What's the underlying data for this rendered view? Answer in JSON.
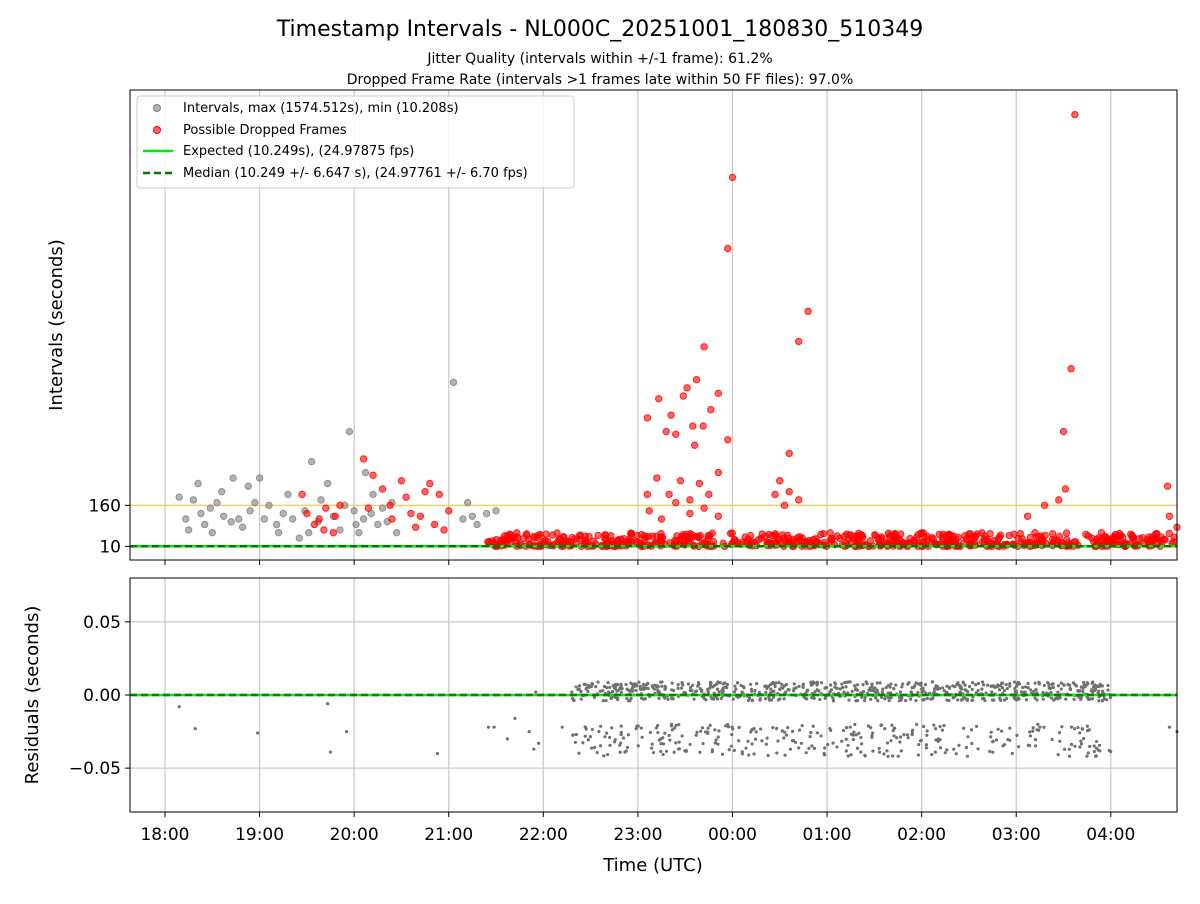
{
  "figure": {
    "title": "Timestamp Intervals - NL000C_20251001_180830_510349",
    "subtitle_1": "Jitter Quality (intervals within +/-1 frame): 61.2%",
    "subtitle_2": "Dropped Frame Rate (intervals >1 frames late within 50 FF files): 97.0%"
  },
  "colors": {
    "intervals": "#808080",
    "dropped": "#ff0000",
    "expected": "#00ee00",
    "median": "#007700",
    "threshold": "#f0d070",
    "grid": "#c8c8c8"
  },
  "chart_data": [
    {
      "type": "scatter",
      "name": "intervals-panel",
      "xlabel": "Time (UTC)",
      "ylabel": "Intervals (seconds)",
      "xlim": [
        -0.37,
        10.7
      ],
      "xlim_note": "hours after 18:00 UTC",
      "ylim": [
        -40,
        1680
      ],
      "yticks": [
        10,
        160
      ],
      "ytick_labels": [
        "10",
        "160"
      ],
      "threshold_line": 160,
      "expected_interval": 10.249,
      "median_interval": 10.249,
      "legend": {
        "placement": "top-left",
        "entries": [
          "Intervals, max (1574.512s), min (10.208s)",
          "Possible Dropped Frames",
          "Expected (10.249s), (24.97875 fps)",
          "Median (10.249 +/- 6.647 s), (24.97761 +/- 6.70 fps)"
        ]
      },
      "series": [
        {
          "name": "Intervals",
          "points": [
            [
              0.15,
              190
            ],
            [
              0.22,
              110
            ],
            [
              0.25,
              70
            ],
            [
              0.3,
              180
            ],
            [
              0.35,
              240
            ],
            [
              0.38,
              130
            ],
            [
              0.42,
              90
            ],
            [
              0.48,
              150
            ],
            [
              0.5,
              60
            ],
            [
              0.55,
              170
            ],
            [
              0.6,
              210
            ],
            [
              0.62,
              120
            ],
            [
              0.7,
              100
            ],
            [
              0.72,
              260
            ],
            [
              0.78,
              110
            ],
            [
              0.82,
              80
            ],
            [
              0.88,
              230
            ],
            [
              0.9,
              140
            ],
            [
              0.95,
              170
            ],
            [
              1.0,
              260
            ],
            [
              1.05,
              110
            ],
            [
              1.1,
              160
            ],
            [
              1.18,
              90
            ],
            [
              1.2,
              60
            ],
            [
              1.25,
              130
            ],
            [
              1.3,
              200
            ],
            [
              1.35,
              110
            ],
            [
              1.42,
              40
            ],
            [
              1.48,
              140
            ],
            [
              1.52,
              60
            ],
            [
              1.55,
              320
            ],
            [
              1.62,
              100
            ],
            [
              1.65,
              180
            ],
            [
              1.72,
              240
            ],
            [
              1.78,
              120
            ],
            [
              1.85,
              70
            ],
            [
              1.9,
              160
            ],
            [
              1.95,
              430
            ],
            [
              2.0,
              140
            ],
            [
              2.02,
              90
            ],
            [
              2.05,
              60
            ],
            [
              2.1,
              110
            ],
            [
              2.12,
              280
            ],
            [
              2.18,
              130
            ],
            [
              2.2,
              200
            ],
            [
              2.25,
              90
            ],
            [
              2.3,
              150
            ],
            [
              2.35,
              100
            ],
            [
              2.4,
              170
            ],
            [
              2.45,
              60
            ],
            [
              3.05,
              610
            ],
            [
              3.15,
              110
            ],
            [
              3.2,
              170
            ],
            [
              3.25,
              120
            ],
            [
              3.3,
              90
            ],
            [
              3.4,
              130
            ],
            [
              3.5,
              140
            ]
          ]
        },
        {
          "name": "Possible Dropped Frames",
          "points": [
            [
              5.95,
              1100
            ],
            [
              6.0,
              1360
            ],
            [
              6.8,
              870
            ],
            [
              6.7,
              760
            ],
            [
              5.7,
              740
            ],
            [
              6.6,
              350
            ],
            [
              5.48,
              560
            ],
            [
              5.58,
              450
            ],
            [
              5.69,
              450
            ],
            [
              5.77,
              510
            ],
            [
              5.52,
              590
            ],
            [
              5.62,
              620
            ],
            [
              5.4,
              420
            ],
            [
              5.85,
              570
            ],
            [
              5.22,
              550
            ],
            [
              5.3,
              430
            ],
            [
              5.35,
              490
            ],
            [
              5.6,
              380
            ],
            [
              5.1,
              480
            ],
            [
              5.95,
              400
            ],
            [
              5.1,
              200
            ],
            [
              5.2,
              260
            ],
            [
              5.33,
              200
            ],
            [
              5.45,
              250
            ],
            [
              5.55,
              180
            ],
            [
              5.65,
              240
            ],
            [
              5.75,
              200
            ],
            [
              5.85,
              280
            ],
            [
              5.12,
              140
            ],
            [
              5.25,
              110
            ],
            [
              5.4,
              170
            ],
            [
              5.55,
              130
            ],
            [
              5.7,
              150
            ],
            [
              5.85,
              120
            ],
            [
              6.45,
              200
            ],
            [
              6.5,
              250
            ],
            [
              6.55,
              160
            ],
            [
              6.6,
              210
            ],
            [
              6.7,
              180
            ],
            [
              9.5,
              430
            ],
            [
              9.58,
              660
            ],
            [
              9.62,
              1590
            ],
            [
              9.52,
              220
            ],
            [
              9.45,
              180
            ],
            [
              9.3,
              160
            ],
            [
              9.12,
              120
            ],
            [
              10.6,
              230
            ],
            [
              10.62,
              120
            ],
            [
              10.7,
              80
            ]
          ],
          "dense_band": {
            "x_range": [
              3.4,
              10.7
            ],
            "y_range": [
              10,
              60
            ],
            "note": "several hundred dropped-frame points clustered just above the expected line"
          }
        }
      ]
    },
    {
      "type": "scatter",
      "name": "residuals-panel",
      "xlabel": "Time (UTC)",
      "ylabel": "Residuals (seconds)",
      "xlim": [
        -0.37,
        10.7
      ],
      "ylim": [
        -0.08,
        0.08
      ],
      "yticks": [
        0.05,
        0.0,
        -0.05
      ],
      "ytick_labels": [
        "0.05",
        "0.00",
        "−0.05"
      ],
      "xticks": [
        0,
        1,
        2,
        3,
        4,
        5,
        6,
        7,
        8,
        9,
        10
      ],
      "xtick_labels": [
        "18:00",
        "19:00",
        "20:00",
        "21:00",
        "22:00",
        "23:00",
        "00:00",
        "01:00",
        "02:00",
        "03:00",
        "04:00"
      ],
      "series": [
        {
          "name": "Residuals",
          "points": [
            [
              0.15,
              -0.008
            ],
            [
              0.32,
              -0.023
            ],
            [
              0.98,
              -0.026
            ],
            [
              1.72,
              -0.006
            ],
            [
              1.75,
              -0.039
            ],
            [
              1.92,
              -0.025
            ],
            [
              2.88,
              -0.04
            ],
            [
              3.42,
              -0.022
            ],
            [
              3.48,
              -0.022
            ],
            [
              3.62,
              -0.03
            ],
            [
              3.7,
              -0.016
            ],
            [
              3.85,
              -0.025
            ],
            [
              3.9,
              -0.037
            ],
            [
              3.95,
              -0.033
            ],
            [
              3.92,
              0.002
            ],
            [
              4.2,
              -0.022
            ],
            [
              4.35,
              -0.027
            ],
            [
              9.62,
              -0.035
            ],
            [
              10.62,
              -0.022
            ],
            [
              10.7,
              -0.025
            ]
          ],
          "dense_region": {
            "x_range": [
              4.3,
              10.0
            ],
            "upper_band": [
              -0.004,
              0.009
            ],
            "lower_band": [
              -0.042,
              -0.02
            ]
          }
        }
      ],
      "reference_line": 0.0
    }
  ]
}
